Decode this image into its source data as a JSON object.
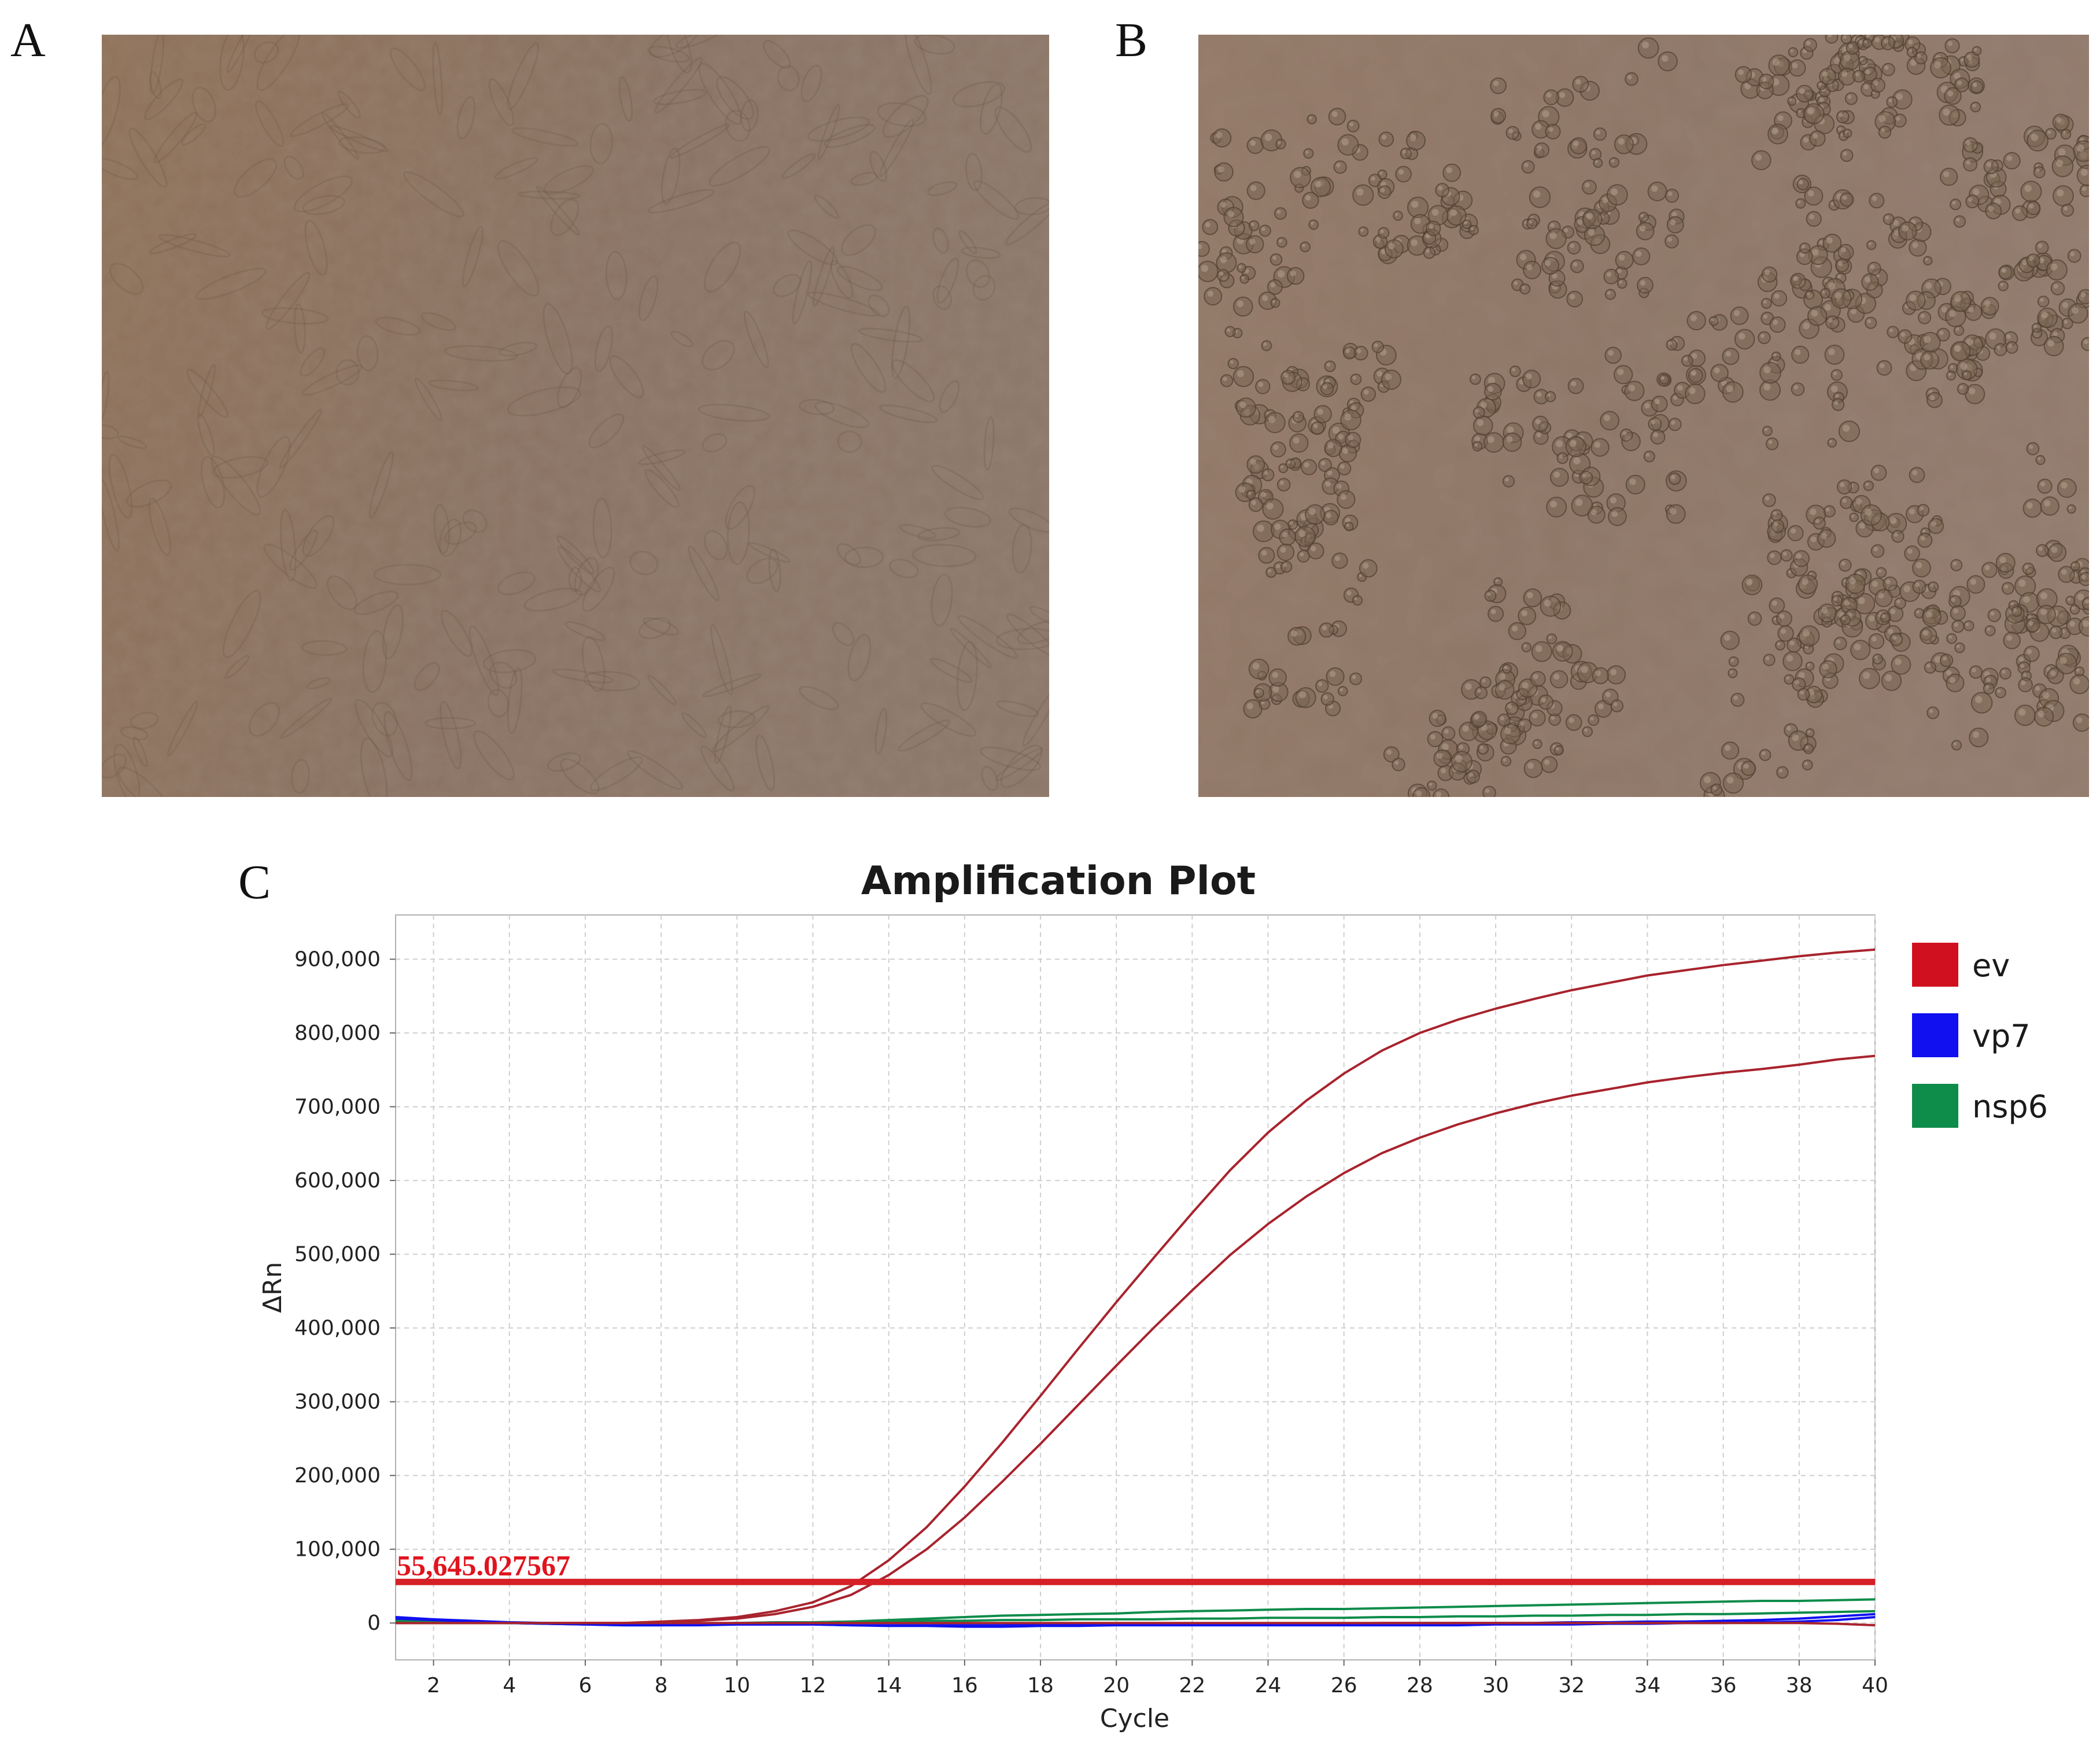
{
  "panels": {
    "a": {
      "letter": "A",
      "image": "microscopy-confluent-cell-monolayer"
    },
    "b": {
      "letter": "B",
      "image": "microscopy-rounded-detached-cells"
    },
    "c": {
      "letter": "C"
    }
  },
  "chart_data": {
    "type": "line",
    "title": "Amplification Plot",
    "xlabel": "Cycle",
    "ylabel": "ΔRn",
    "xlim": [
      1,
      40
    ],
    "ylim": [
      -50000,
      960000
    ],
    "xticks": [
      2,
      4,
      6,
      8,
      10,
      12,
      14,
      16,
      18,
      20,
      22,
      24,
      26,
      28,
      30,
      32,
      34,
      36,
      38,
      40
    ],
    "yticks": [
      0,
      100000,
      200000,
      300000,
      400000,
      500000,
      600000,
      700000,
      800000,
      900000
    ],
    "ytick_labels": [
      "0",
      "100,000",
      "200,000",
      "300,000",
      "400,000",
      "500,000",
      "600,000",
      "700,000",
      "800,000",
      "900,000"
    ],
    "grid": true,
    "legend_position": "right",
    "legend": [
      {
        "label": "ev",
        "color": "#d0101e"
      },
      {
        "label": "vp7",
        "color": "#1010f0"
      },
      {
        "label": "nsp6",
        "color": "#0e8c4a"
      }
    ],
    "threshold": {
      "value": 55645.027567,
      "label": "55,645.027567",
      "color": "#d42026"
    },
    "x": [
      1,
      2,
      3,
      4,
      5,
      6,
      7,
      8,
      9,
      10,
      11,
      12,
      13,
      14,
      15,
      16,
      17,
      18,
      19,
      20,
      21,
      22,
      23,
      24,
      25,
      26,
      27,
      28,
      29,
      30,
      31,
      32,
      33,
      34,
      35,
      36,
      37,
      38,
      39,
      40
    ],
    "series": [
      {
        "group": "ev",
        "color": "#a8232d",
        "values": [
          0,
          0,
          0,
          0,
          0,
          0,
          0,
          2000,
          4000,
          8000,
          16000,
          28000,
          50000,
          85000,
          130000,
          185000,
          245000,
          308000,
          372000,
          435000,
          496000,
          556000,
          614000,
          665000,
          708000,
          745000,
          776000,
          800000,
          818000,
          833000,
          846000,
          858000,
          868000,
          878000,
          885000,
          892000,
          898000,
          904000,
          909000,
          913000
        ]
      },
      {
        "group": "ev",
        "color": "#a8232d",
        "values": [
          0,
          0,
          0,
          0,
          0,
          0,
          0,
          1000,
          3000,
          6000,
          12000,
          22000,
          38000,
          65000,
          100000,
          143000,
          192000,
          243000,
          296000,
          349000,
          401000,
          451000,
          499000,
          541000,
          578000,
          610000,
          637000,
          658000,
          676000,
          691000,
          704000,
          715000,
          724000,
          733000,
          740000,
          746000,
          751000,
          757000,
          764000,
          769000
        ]
      },
      {
        "group": "nsp6",
        "color": "#0e8c4a",
        "values": [
          4000,
          2000,
          1000,
          0,
          -1000,
          -2000,
          -3000,
          -3000,
          -2000,
          -1000,
          0,
          1000,
          2000,
          4000,
          6000,
          8000,
          10000,
          11000,
          12000,
          13000,
          15000,
          16000,
          17000,
          18000,
          19000,
          19000,
          20000,
          21000,
          22000,
          23000,
          24000,
          25000,
          26000,
          27000,
          28000,
          29000,
          30000,
          30000,
          31000,
          32000
        ]
      },
      {
        "group": "nsp6",
        "color": "#0e8c4a",
        "values": [
          3000,
          2000,
          1000,
          0,
          -1000,
          -2000,
          -2000,
          -2000,
          -1000,
          0,
          1000,
          1000,
          2000,
          2000,
          3000,
          3000,
          4000,
          4000,
          5000,
          5000,
          5000,
          6000,
          6000,
          7000,
          7000,
          7000,
          8000,
          8000,
          9000,
          9000,
          10000,
          10000,
          11000,
          11000,
          12000,
          12000,
          13000,
          14000,
          15000,
          16000
        ]
      },
      {
        "group": "vp7",
        "color": "#1010f0",
        "values": [
          8000,
          5000,
          3000,
          1000,
          0,
          -1000,
          -2000,
          -2000,
          -2000,
          -2000,
          -2000,
          -2000,
          -3000,
          -4000,
          -4000,
          -5000,
          -5000,
          -4000,
          -4000,
          -3000,
          -3000,
          -3000,
          -3000,
          -3000,
          -3000,
          -3000,
          -3000,
          -3000,
          -3000,
          -2000,
          -2000,
          -2000,
          -1000,
          -1000,
          0,
          0,
          1000,
          2000,
          4000,
          8000
        ]
      },
      {
        "group": "vp7",
        "color": "#1010f0",
        "values": [
          6000,
          4000,
          2000,
          0,
          -1000,
          -2000,
          -3000,
          -3000,
          -3000,
          -2000,
          -2000,
          -2000,
          -3000,
          -3000,
          -3000,
          -3000,
          -3000,
          -2000,
          -2000,
          -1000,
          -1000,
          -1000,
          -1000,
          -1000,
          -1000,
          -1000,
          0,
          0,
          0,
          0,
          0,
          1000,
          1000,
          2000,
          2000,
          3000,
          4000,
          6000,
          9000,
          12000
        ]
      },
      {
        "group": "ev",
        "color": "#a8232d",
        "values": [
          0,
          0,
          0,
          0,
          0,
          0,
          0,
          0,
          0,
          0,
          0,
          0,
          0,
          0,
          0,
          0,
          0,
          0,
          0,
          0,
          0,
          0,
          0,
          0,
          0,
          0,
          0,
          0,
          0,
          0,
          0,
          0,
          0,
          0,
          0,
          0,
          0,
          0,
          -1000,
          -3000
        ]
      }
    ]
  }
}
